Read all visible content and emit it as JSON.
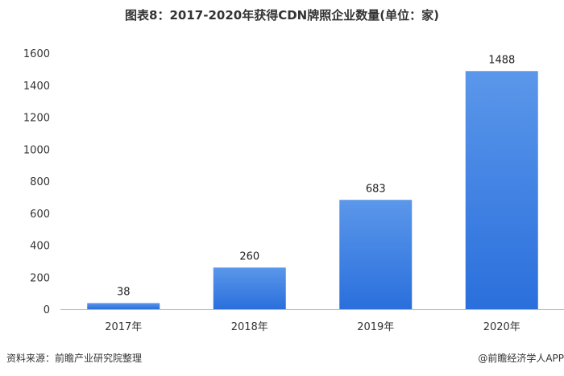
{
  "chart_data": {
    "type": "bar",
    "title": "图表8：2017-2020年获得CDN牌照企业数量(单位：家)",
    "categories": [
      "2017年",
      "2018年",
      "2019年",
      "2020年"
    ],
    "values": [
      38,
      260,
      683,
      1488
    ],
    "xlabel": "",
    "ylabel": "",
    "ylim": [
      0,
      1600
    ],
    "yticks": [
      0,
      200,
      400,
      600,
      800,
      1000,
      1200,
      1400,
      1600
    ],
    "grid": false,
    "legend": "none",
    "bar_color_top": "#5b97ea",
    "bar_color_bottom": "#2a6fdc"
  },
  "footer": {
    "source": "资料来源：前瞻产业研究院整理",
    "credit": "@前瞻经济学人APP"
  }
}
